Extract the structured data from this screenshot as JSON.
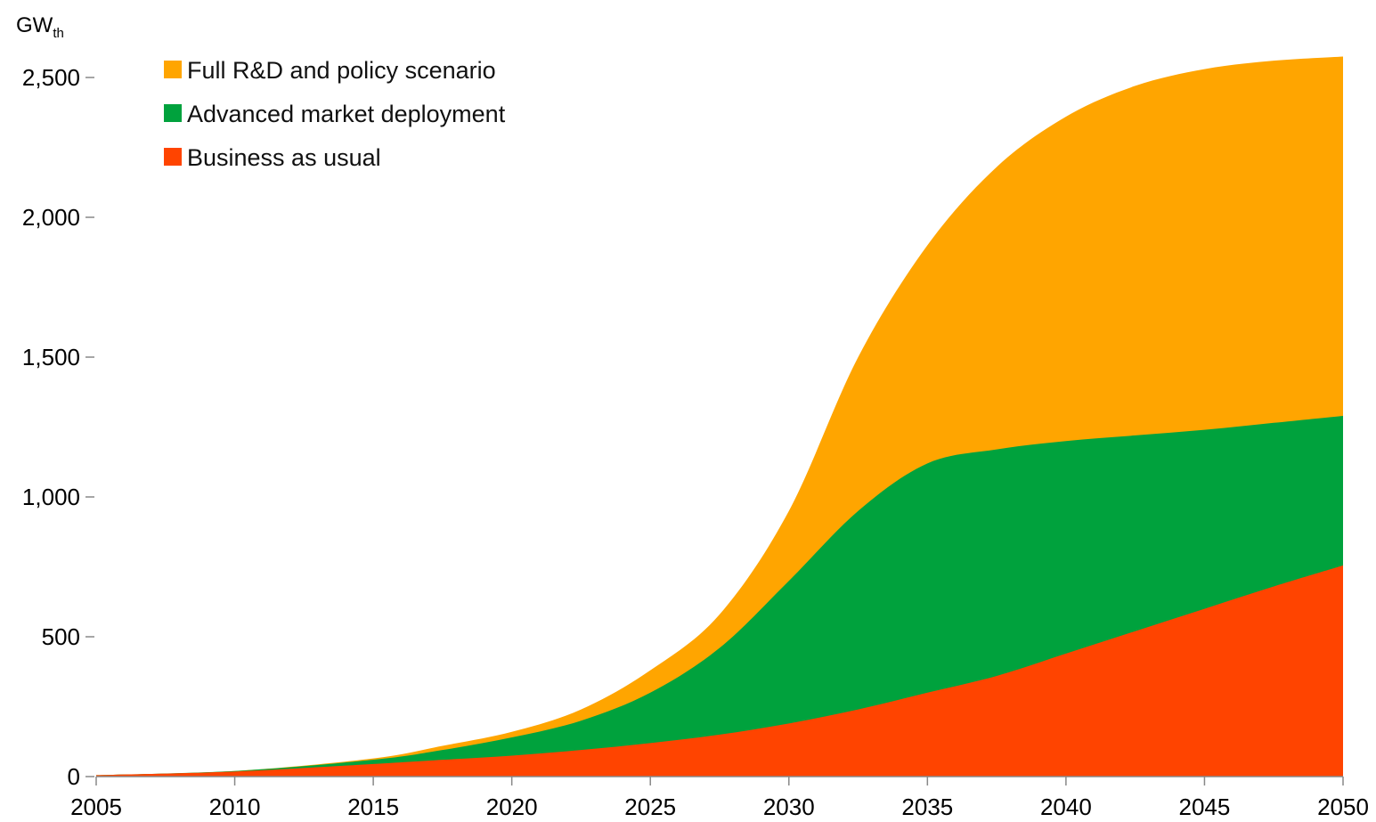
{
  "chart_data": {
    "type": "area",
    "stacked": false,
    "title": "",
    "xlabel": "",
    "ylabel": "GW",
    "ylabel_subscript": "th",
    "x": [
      2005,
      2010,
      2015,
      2017.5,
      2020,
      2022.5,
      2025,
      2027.5,
      2030,
      2032.5,
      2035,
      2037.5,
      2040,
      2042.5,
      2045,
      2047.5,
      2050
    ],
    "xticks": [
      2005,
      2010,
      2015,
      2020,
      2025,
      2030,
      2035,
      2040,
      2045,
      2050
    ],
    "xlim": [
      2005,
      2050
    ],
    "yticks": [
      0,
      500,
      1000,
      1500,
      2000,
      2500
    ],
    "ytick_labels": [
      "0",
      "500",
      "1,000",
      "1,500",
      "2,000",
      "2,500"
    ],
    "ylim": [
      0,
      2600
    ],
    "grid": false,
    "legend_position": "top-left",
    "series": [
      {
        "name": "Full R&D and policy scenario",
        "color": "#FFA500",
        "values": [
          5,
          20,
          65,
          110,
          160,
          240,
          380,
          580,
          950,
          1500,
          1900,
          2180,
          2360,
          2470,
          2530,
          2560,
          2575
        ]
      },
      {
        "name": "Advanced market deployment",
        "color": "#00A23D",
        "values": [
          5,
          20,
          60,
          95,
          140,
          200,
          300,
          460,
          700,
          950,
          1120,
          1170,
          1200,
          1220,
          1240,
          1265,
          1290
        ]
      },
      {
        "name": "Business as usual",
        "color": "#FF4400",
        "values": [
          5,
          18,
          45,
          60,
          75,
          95,
          120,
          150,
          190,
          240,
          300,
          360,
          440,
          520,
          600,
          680,
          755
        ]
      }
    ]
  }
}
